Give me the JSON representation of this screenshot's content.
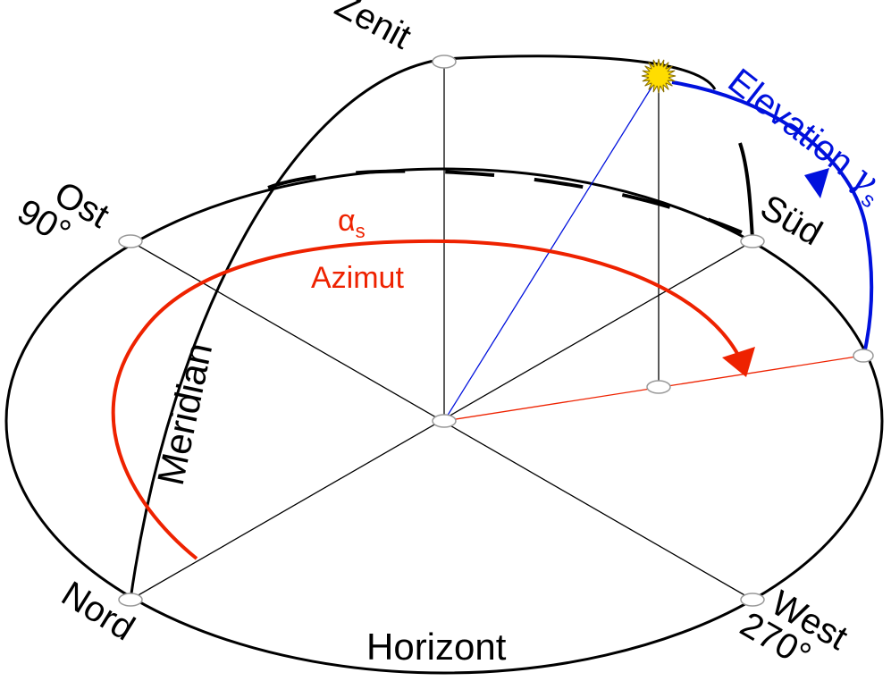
{
  "labels": {
    "zenith": "Zenit",
    "east": "Ost",
    "east_deg": "90°",
    "south": "Süd",
    "north": "Nord",
    "west": "West",
    "west_deg": "270°",
    "horizon": "Horizont",
    "meridian": "Meridian",
    "azimuth_symbol": "α",
    "azimuth_sub": "s",
    "azimuth": "Azimut",
    "elevation": "Elevation",
    "elevation_symbol": "γ",
    "elevation_sub": "s"
  },
  "colors": {
    "azimuth": "#ee2200",
    "elevation": "#0011dd",
    "sun": "#ffdd00",
    "lines": "#000000",
    "markers": "#999999"
  }
}
